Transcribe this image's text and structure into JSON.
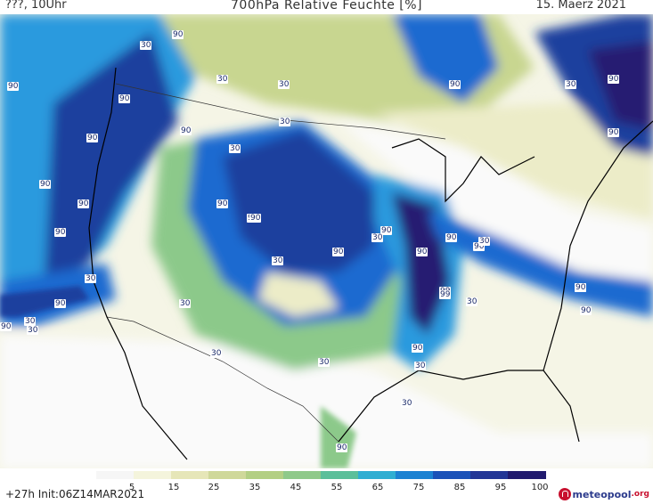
{
  "header": {
    "left": "???, 10Uhr",
    "title": "700hPa Relative Feuchte [%]",
    "right": "15. Maerz 2021"
  },
  "footer": {
    "init": "+27h  Init:06Z14MAR2021",
    "brand": "meteopool",
    "brand_tld": ".org"
  },
  "legend": {
    "ticks": [
      "5",
      "15",
      "25",
      "35",
      "45",
      "55",
      "65",
      "75",
      "85",
      "95",
      "100"
    ],
    "colors": [
      "#f6f6f6",
      "#f4f4dc",
      "#e6e6b8",
      "#cfd89a",
      "#b3cf84",
      "#8fc98a",
      "#5bbf9a",
      "#2faed2",
      "#1c82d2",
      "#1b52b8",
      "#233696",
      "#211a6e"
    ]
  },
  "map": {
    "colors": {
      "background": "#f5f5e6",
      "dry": "#fafafa",
      "light_yellow": "#ececc8",
      "yellow_green": "#c8d690",
      "green": "#8cc98a",
      "teal": "#42b6b6",
      "light_blue": "#2b9ade",
      "blue": "#1c6ad0",
      "dark_blue": "#1f3f9e",
      "navy": "#251e72",
      "borders": "#333333",
      "coast": "#000000"
    },
    "labels": [
      "90",
      "30",
      "90",
      "90",
      "30",
      "30",
      "90",
      "30",
      "90",
      "30",
      "90",
      "90",
      "90",
      "90",
      "90",
      "30",
      "90",
      "90",
      "90",
      "90",
      "30",
      "90",
      "90",
      "30",
      "90",
      "30",
      "90",
      "30",
      "90",
      "90",
      "90",
      "30",
      "99",
      "90",
      "30",
      "99",
      "30",
      "90",
      "90",
      "30",
      "30",
      "30",
      "90",
      "30",
      "90",
      "30",
      "90"
    ]
  }
}
